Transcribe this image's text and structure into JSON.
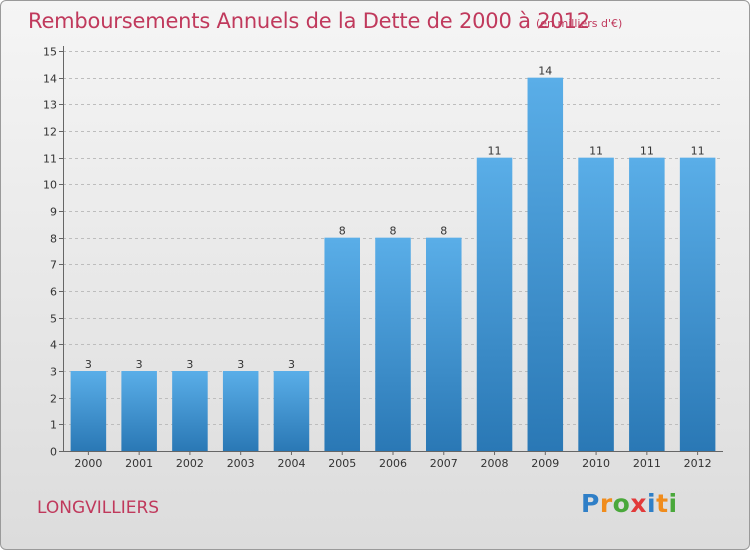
{
  "title": "Remboursements Annuels de la Dette de 2000 à 2012",
  "subtitle": "(en milliers d'€)",
  "commune": "LONGVILLIERS",
  "brand": {
    "letters": [
      "P",
      "r",
      "o",
      "x",
      "i",
      "t",
      "i"
    ],
    "colors": [
      "#2f7fc7",
      "#f08c1c",
      "#4aa83b",
      "#e23a3a",
      "#2f7fc7",
      "#f08c1c",
      "#4aa83b"
    ]
  },
  "colors": {
    "bar_top": "#5aaee8",
    "bar_bottom": "#2a78b5",
    "text_accent": "#c0395c",
    "grid": "#bdbdbd"
  },
  "chart_data": {
    "type": "bar",
    "categories": [
      "2000",
      "2001",
      "2002",
      "2003",
      "2004",
      "2005",
      "2006",
      "2007",
      "2008",
      "2009",
      "2010",
      "2011",
      "2012"
    ],
    "values": [
      3,
      3,
      3,
      3,
      3,
      8,
      8,
      8,
      11,
      14,
      11,
      11,
      11
    ],
    "data_labels": [
      "3",
      "3",
      "3",
      "3",
      "3",
      "8",
      "8",
      "8",
      "11",
      "14",
      "11",
      "11",
      "11"
    ],
    "yticks": [
      "0",
      "1",
      "2",
      "3",
      "4",
      "5",
      "6",
      "7",
      "8",
      "9",
      "10",
      "11",
      "12",
      "13",
      "14",
      "15"
    ],
    "ylim": [
      0,
      15
    ],
    "grid": true,
    "legend": "none",
    "xlabel": "",
    "ylabel": ""
  }
}
